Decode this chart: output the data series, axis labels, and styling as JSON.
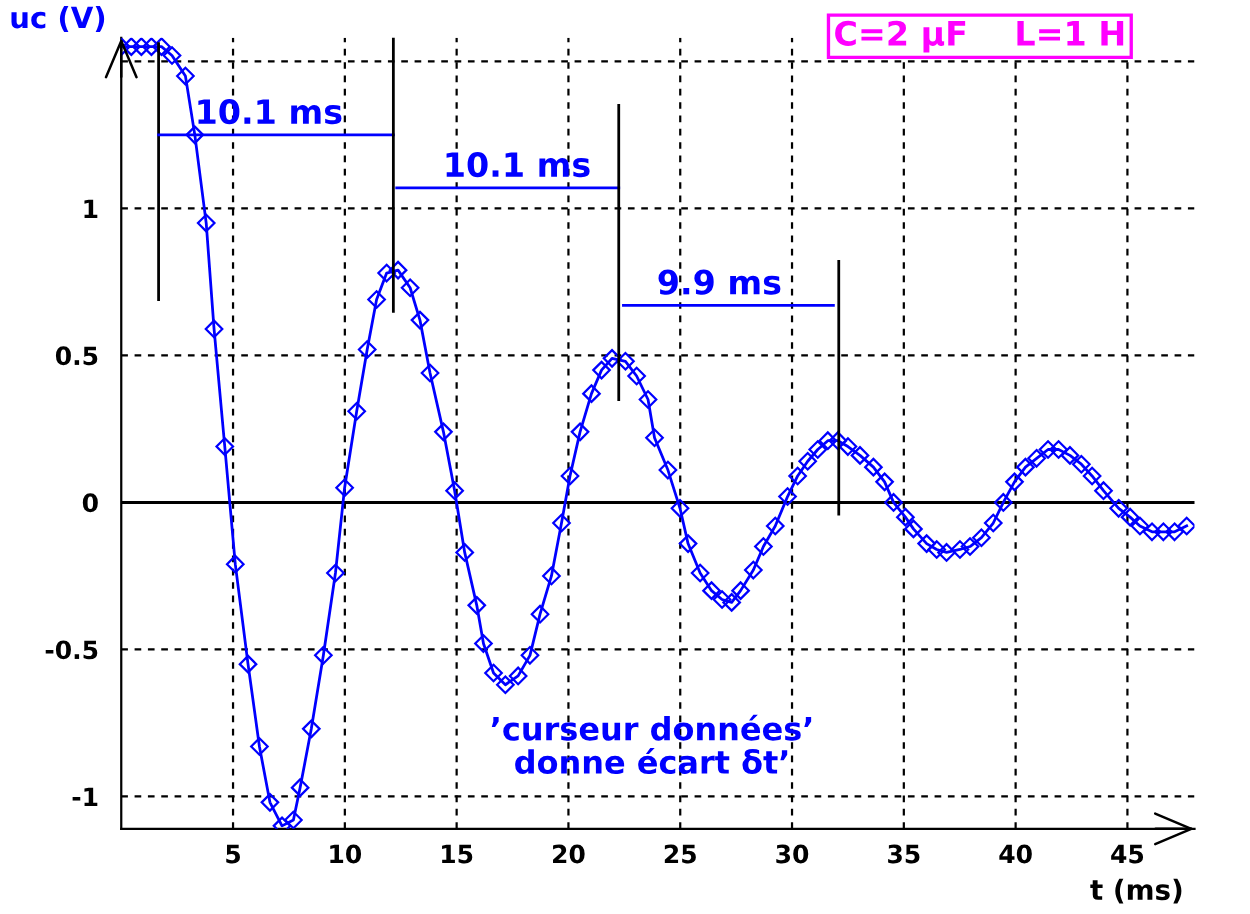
{
  "chart_data": {
    "type": "line",
    "xlabel": "t (ms)",
    "ylabel": "uc (V)",
    "xlim": [
      0,
      48
    ],
    "ylim": [
      -1.11,
      1.58
    ],
    "xticks": [
      5,
      10,
      15,
      20,
      25,
      30,
      35,
      40,
      45
    ],
    "yticks": [
      -1,
      -0.5,
      0,
      0.5,
      1,
      {
        "value": 1.5,
        "label": null
      }
    ],
    "grid": true,
    "marker": "diamond",
    "line_style": "solid",
    "ref_lines": [
      {
        "axis": "y",
        "value": 0,
        "color": "#000000",
        "line_style": "solid"
      }
    ],
    "series": [
      {
        "color": "#0000ff",
        "x": [
          0,
          0.45,
          0.9,
          1.35,
          1.8,
          2.27,
          2.87,
          3.29,
          3.8,
          4.15,
          4.63,
          5.1,
          5.67,
          6.18,
          6.65,
          7.19,
          7.7,
          8.0,
          8.5,
          9.04,
          9.58,
          9.99,
          10.53,
          11.0,
          11.42,
          11.87,
          12.38,
          12.92,
          13.36,
          13.81,
          14.41,
          14.91,
          15.36,
          15.9,
          16.2,
          16.65,
          17.18,
          17.75,
          18.28,
          18.73,
          19.24,
          19.69,
          20.07,
          20.52,
          21.03,
          21.48,
          21.95,
          22.55,
          23.05,
          23.56,
          23.85,
          24.45,
          24.99,
          25.35,
          25.89,
          26.4,
          26.87,
          27.3,
          27.7,
          28.27,
          28.72,
          29.25,
          29.8,
          30.25,
          30.7,
          31.15,
          31.6,
          32.05,
          32.5,
          33.04,
          33.64,
          34.14,
          34.54,
          35.07,
          35.43,
          36.02,
          36.47,
          36.91,
          37.51,
          37.96,
          38.47,
          39.0,
          39.45,
          39.95,
          40.44,
          40.94,
          41.45,
          41.92,
          42.43,
          42.94,
          43.42,
          43.93,
          44.61,
          45.12,
          45.56,
          46.1,
          46.61,
          47.11,
          47.65
        ],
        "values": [
          1.55,
          1.55,
          1.55,
          1.55,
          1.55,
          1.52,
          1.45,
          1.25,
          0.95,
          0.59,
          0.19,
          -0.21,
          -0.55,
          -0.83,
          -1.02,
          -1.1,
          -1.08,
          -0.97,
          -0.77,
          -0.52,
          -0.24,
          0.05,
          0.31,
          0.52,
          0.69,
          0.78,
          0.79,
          0.73,
          0.62,
          0.44,
          0.24,
          0.04,
          -0.17,
          -0.35,
          -0.48,
          -0.58,
          -0.62,
          -0.59,
          -0.52,
          -0.38,
          -0.25,
          -0.07,
          0.09,
          0.24,
          0.37,
          0.45,
          0.49,
          0.48,
          0.43,
          0.35,
          0.22,
          0.11,
          -0.02,
          -0.14,
          -0.24,
          -0.3,
          -0.33,
          -0.34,
          -0.3,
          -0.23,
          -0.15,
          -0.08,
          0.02,
          0.09,
          0.14,
          0.18,
          0.21,
          0.21,
          0.19,
          0.16,
          0.12,
          0.07,
          0.0,
          -0.05,
          -0.09,
          -0.14,
          -0.16,
          -0.17,
          -0.16,
          -0.15,
          -0.12,
          -0.07,
          0.0,
          0.07,
          0.12,
          0.15,
          0.18,
          0.18,
          0.16,
          0.13,
          0.09,
          0.04,
          -0.02,
          -0.05,
          -0.08,
          -0.1,
          -0.1,
          -0.1,
          -0.08
        ]
      },
      {
        "type": "line",
        "color": "#000000",
        "marker": "none",
        "x": [
          1.67,
          1.67
        ],
        "values": [
          1.56,
          0.69
        ]
      },
      {
        "type": "line",
        "color": "#0000ff",
        "marker": "none",
        "x": [
          1.67,
          12.17
        ],
        "values": [
          1.25,
          1.25
        ]
      },
      {
        "type": "line",
        "color": "#000000",
        "marker": "none",
        "x": [
          12.17,
          12.17
        ],
        "values": [
          1.58,
          0.65
        ]
      },
      {
        "type": "line",
        "color": "#0000ff",
        "marker": "none",
        "x": [
          12.32,
          22.25
        ],
        "values": [
          1.07,
          1.07
        ]
      },
      {
        "type": "line",
        "color": "#000000",
        "marker": "none",
        "x": [
          22.25,
          22.25
        ],
        "values": [
          1.35,
          0.35
        ]
      },
      {
        "type": "line",
        "color": "#0000ff",
        "marker": "none",
        "x": [
          22.46,
          31.85
        ],
        "values": [
          0.67,
          0.67
        ]
      },
      {
        "type": "line",
        "color": "#000000",
        "marker": "none",
        "x": [
          32.09,
          32.09
        ],
        "values": [
          0.82,
          -0.04
        ]
      }
    ],
    "annotations": [
      "C=2 µF    L=1 H",
      "’curseur données’\ndonne écart δt’",
      {
        "text": "10.1 ms",
        "x": 6.6,
        "y": 1.25
      },
      {
        "text": "10.1 ms",
        "x": 17.7,
        "y": 1.07
      },
      {
        "text": "9.9 ms",
        "x": 26.75,
        "y": 0.67
      }
    ]
  }
}
